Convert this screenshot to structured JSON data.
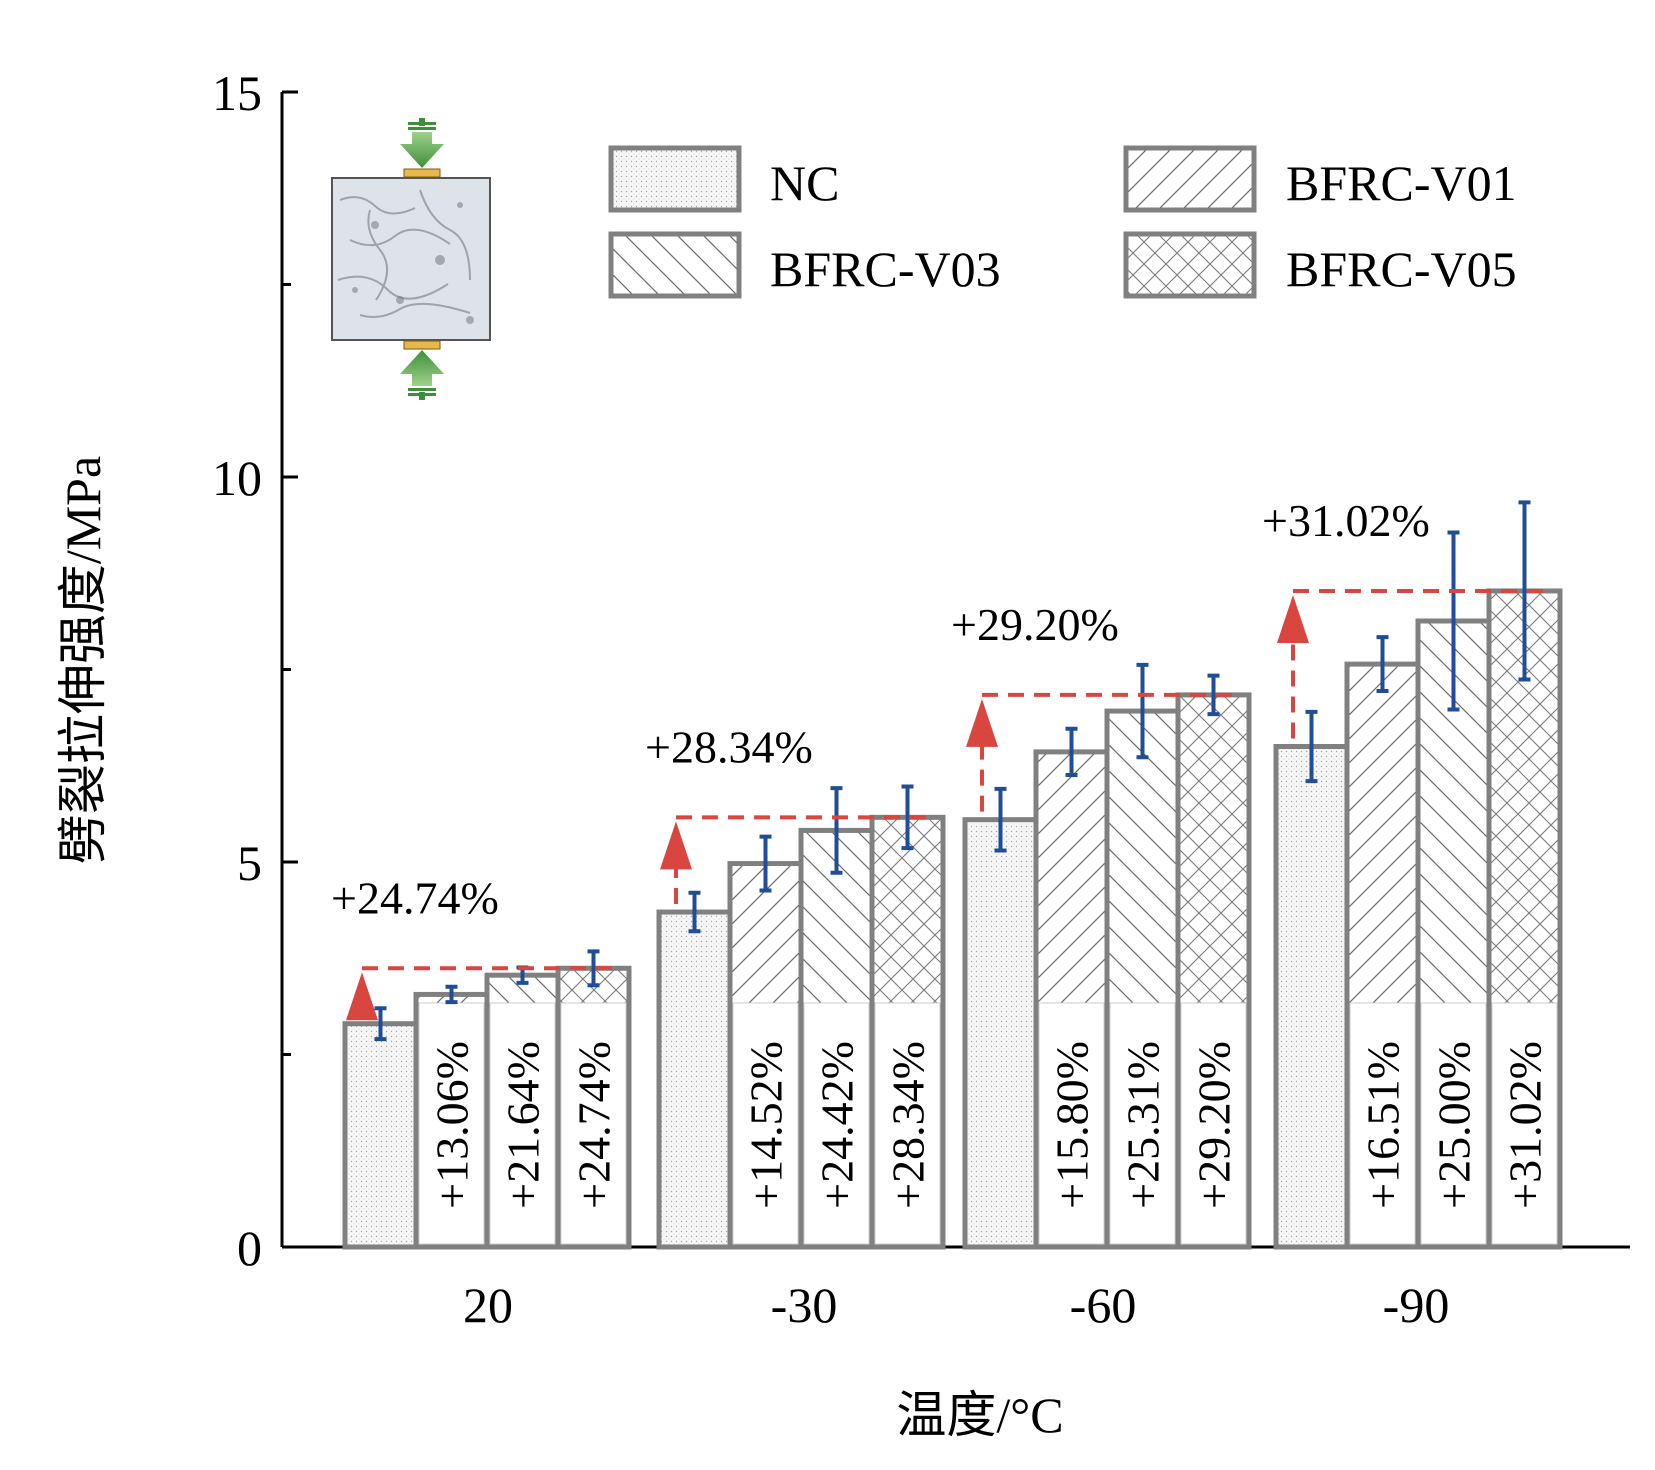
{
  "colors": {
    "bar_outline": "#808080",
    "error_bar": "#1f4e96",
    "gain_arrow": "#d9453f"
  },
  "legend": [
    {
      "label": "NC",
      "pattern": "dots"
    },
    {
      "label": "BFRC-V01",
      "pattern": "hatch-forward"
    },
    {
      "label": "BFRC-V03",
      "pattern": "hatch-back"
    },
    {
      "label": "BFRC-V05",
      "pattern": "crosshatch"
    }
  ],
  "inset": {
    "icon": "splitting-test-specimen-icon"
  },
  "chart_data": {
    "type": "bar",
    "xlabel": "温度/°C",
    "ylabel": "劈裂拉伸强度/MPa",
    "ylim": [
      0,
      15
    ],
    "yticks": [
      "0",
      "5",
      "10",
      "15"
    ],
    "categories": [
      "20",
      "-30",
      "-60",
      "-90"
    ],
    "series": [
      {
        "name": "NC",
        "values": [
          2.9,
          4.35,
          5.55,
          6.5
        ],
        "errors": [
          0.2,
          0.25,
          0.4,
          0.45
        ]
      },
      {
        "name": "BFRC-V01",
        "values": [
          3.28,
          4.98,
          6.43,
          7.57
        ],
        "errors": [
          0.1,
          0.35,
          0.3,
          0.35
        ]
      },
      {
        "name": "BFRC-V03",
        "values": [
          3.53,
          5.41,
          6.96,
          8.13
        ],
        "errors": [
          0.1,
          0.55,
          0.6,
          1.15
        ]
      },
      {
        "name": "BFRC-V05",
        "values": [
          3.62,
          5.58,
          7.17,
          8.52
        ],
        "errors": [
          0.22,
          0.4,
          0.25,
          1.15
        ]
      }
    ],
    "bar_labels": [
      [
        "+13.06%",
        "+21.64%",
        "+24.74%"
      ],
      [
        "+14.52%",
        "+24.42%",
        "+28.34%"
      ],
      [
        "+15.80%",
        "+25.31%",
        "+29.20%"
      ],
      [
        "+16.51%",
        "+25.00%",
        "+31.02%"
      ]
    ],
    "gain_labels": [
      "+24.74%",
      "+28.34%",
      "+29.20%",
      "+31.02%"
    ]
  }
}
